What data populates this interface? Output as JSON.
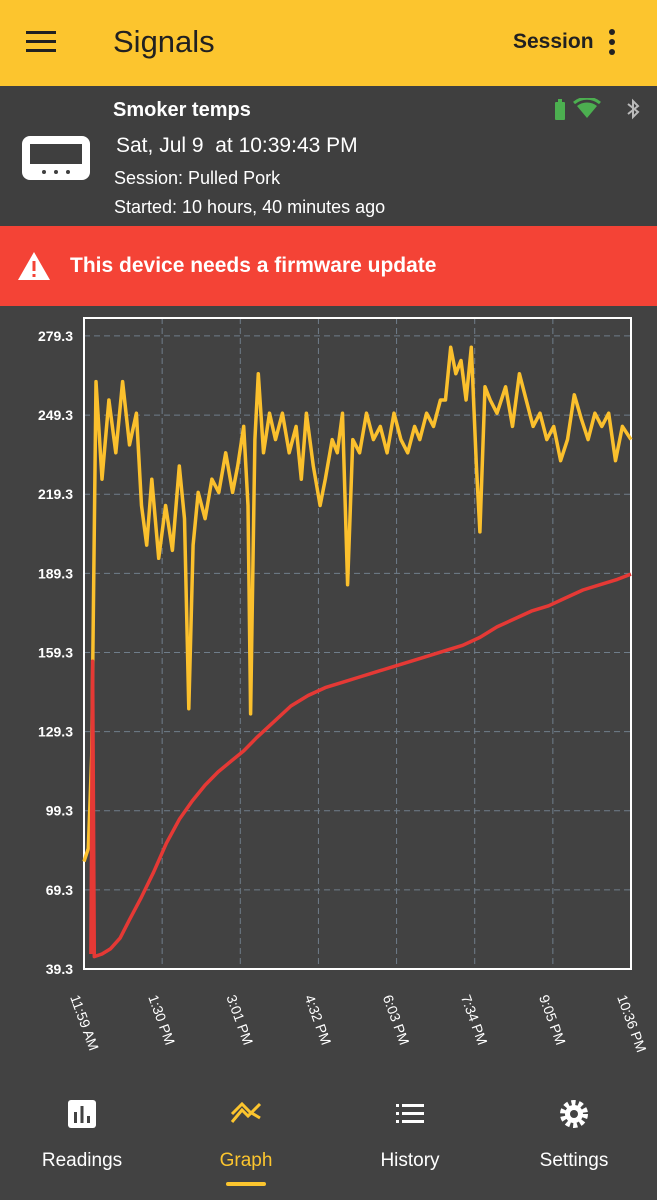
{
  "app_bar": {
    "title": "Signals",
    "action": "Session"
  },
  "device": {
    "name": "Smoker temps",
    "date": "Sat, Jul 9  at 10:39:43 PM",
    "session": "Session: Pulled Pork",
    "started": "Started: 10 hours, 40 minutes ago"
  },
  "alert": {
    "text": "This device needs a firmware update"
  },
  "chart_data": {
    "type": "line",
    "grid": true,
    "xlim": [
      719,
      1356
    ],
    "xticks": [
      {
        "value": 719,
        "label": "11:59 AM"
      },
      {
        "value": 810,
        "label": "1:30 PM"
      },
      {
        "value": 901,
        "label": "3:01 PM"
      },
      {
        "value": 992,
        "label": "4:32 PM"
      },
      {
        "value": 1083,
        "label": "6:03 PM"
      },
      {
        "value": 1174,
        "label": "7:34 PM"
      },
      {
        "value": 1265,
        "label": "9:05 PM"
      },
      {
        "value": 1356,
        "label": "10:36 PM"
      }
    ],
    "ylim": [
      39.3,
      286.1
    ],
    "yticks": [
      39.3,
      69.3,
      99.3,
      129.3,
      159.3,
      189.3,
      219.3,
      249.3,
      279.3
    ],
    "series": [
      {
        "color": "#fbc02d",
        "x": [
          719,
          724,
          728,
          733,
          740,
          748,
          756,
          764,
          772,
          780,
          786,
          792,
          798,
          806,
          814,
          822,
          830,
          836,
          841,
          846,
          852,
          860,
          868,
          876,
          884,
          892,
          898,
          905,
          910,
          913,
          918,
          922,
          928,
          935,
          942,
          950,
          958,
          966,
          972,
          978,
          986,
          994,
          1000,
          1008,
          1014,
          1020,
          1026,
          1032,
          1040,
          1048,
          1056,
          1064,
          1072,
          1080,
          1088,
          1096,
          1104,
          1110,
          1118,
          1126,
          1134,
          1140,
          1146,
          1152,
          1158,
          1164,
          1170,
          1176,
          1180,
          1186,
          1192,
          1200,
          1210,
          1218,
          1226,
          1234,
          1242,
          1250,
          1258,
          1266,
          1274,
          1282,
          1290,
          1298,
          1306,
          1314,
          1322,
          1330,
          1338,
          1346,
          1356
        ],
        "values": [
          80,
          85,
          120,
          262,
          225,
          255,
          235,
          262,
          238,
          250,
          215,
          200,
          225,
          195,
          215,
          198,
          230,
          210,
          138,
          200,
          220,
          210,
          225,
          220,
          235,
          220,
          230,
          245,
          215,
          136,
          240,
          265,
          235,
          250,
          240,
          250,
          235,
          245,
          225,
          250,
          230,
          215,
          225,
          240,
          235,
          250,
          185,
          240,
          235,
          250,
          240,
          245,
          235,
          250,
          240,
          235,
          245,
          240,
          250,
          245,
          255,
          255,
          275,
          265,
          270,
          255,
          275,
          230,
          205,
          260,
          255,
          250,
          260,
          245,
          265,
          255,
          245,
          250,
          240,
          245,
          232,
          240,
          257,
          248,
          240,
          250,
          245,
          250,
          232,
          245,
          240
        ]
      },
      {
        "color": "#e53935",
        "x": [
          727,
          729,
          731,
          740,
          750,
          761,
          772,
          785,
          800,
          815,
          830,
          845,
          860,
          875,
          890,
          905,
          920,
          940,
          960,
          980,
          1000,
          1020,
          1040,
          1060,
          1080,
          1100,
          1120,
          1140,
          1160,
          1180,
          1200,
          1220,
          1240,
          1260,
          1280,
          1300,
          1320,
          1340,
          1356
        ],
        "values": [
          45,
          156,
          44,
          45,
          47,
          51,
          58,
          66,
          76,
          87,
          96,
          103,
          109,
          114,
          118,
          122,
          127,
          133,
          139,
          143,
          146,
          148,
          150,
          152,
          154,
          156,
          158,
          160,
          162,
          165,
          169,
          172,
          175,
          177,
          180,
          183,
          185,
          187,
          189
        ]
      }
    ]
  },
  "nav": {
    "items": [
      "Readings",
      "Graph",
      "History",
      "Settings"
    ],
    "active": 1
  }
}
